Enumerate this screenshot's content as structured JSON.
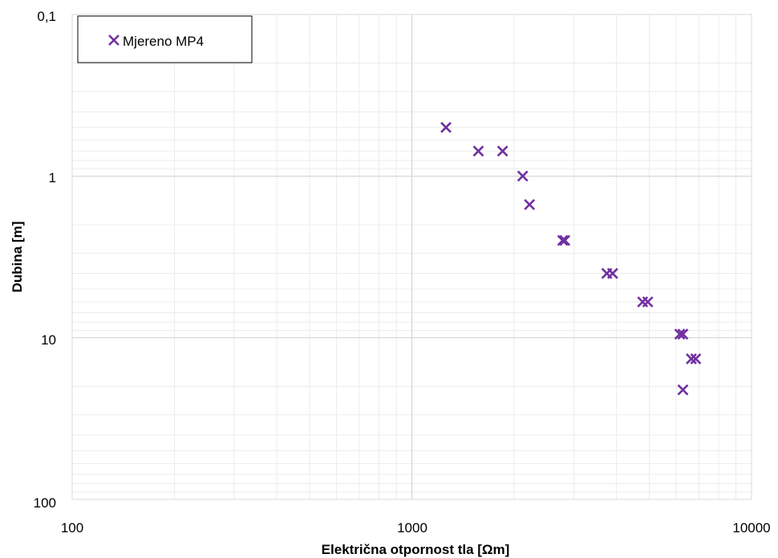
{
  "chart_data": {
    "type": "scatter",
    "xlabel": "Električna otpornost tla [Ωm]",
    "ylabel": "Dubina [m]",
    "x_scale": "log",
    "y_scale": "log",
    "y_reversed": true,
    "xlim": [
      100,
      10000
    ],
    "ylim": [
      0.1,
      100
    ],
    "x_ticks": [
      "100",
      "1000",
      "10000"
    ],
    "y_ticks": [
      "0,1",
      "1",
      "10",
      "100"
    ],
    "grid": true,
    "legend_position": "top-left",
    "series": [
      {
        "name": "Mjereno MP4",
        "color": "#7030A0",
        "marker": "x",
        "points": [
          {
            "x": 1260,
            "y": 0.5
          },
          {
            "x": 1570,
            "y": 0.7
          },
          {
            "x": 1850,
            "y": 0.7
          },
          {
            "x": 2120,
            "y": 1.0
          },
          {
            "x": 2220,
            "y": 1.5
          },
          {
            "x": 2780,
            "y": 2.5
          },
          {
            "x": 2820,
            "y": 2.5
          },
          {
            "x": 3750,
            "y": 4.0
          },
          {
            "x": 3900,
            "y": 4.0
          },
          {
            "x": 4780,
            "y": 6.0
          },
          {
            "x": 4950,
            "y": 6.0
          },
          {
            "x": 6150,
            "y": 9.5
          },
          {
            "x": 6280,
            "y": 9.5
          },
          {
            "x": 6650,
            "y": 13.5
          },
          {
            "x": 6850,
            "y": 13.5
          },
          {
            "x": 6280,
            "y": 21.0
          }
        ]
      }
    ]
  }
}
